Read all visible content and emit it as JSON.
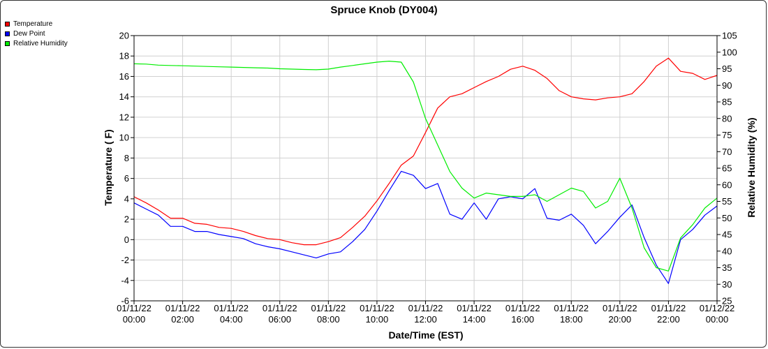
{
  "chart_data": {
    "type": "line",
    "title": "Spruce Knob (DY004)",
    "xlabel": "Date/Time (EST)",
    "ylabel": "Temperature ( F)",
    "y2label": "Relative Humidity (%)",
    "ylim": [
      -6,
      20
    ],
    "y2lim": [
      25,
      105
    ],
    "grid": true,
    "legend_position": "top-left",
    "x_tick_labels": [
      [
        "01/11/22",
        "00:00"
      ],
      [
        "01/11/22",
        "02:00"
      ],
      [
        "01/11/22",
        "04:00"
      ],
      [
        "01/11/22",
        "06:00"
      ],
      [
        "01/11/22",
        "08:00"
      ],
      [
        "01/11/22",
        "10:00"
      ],
      [
        "01/11/22",
        "12:00"
      ],
      [
        "01/11/22",
        "14:00"
      ],
      [
        "01/11/22",
        "16:00"
      ],
      [
        "01/11/22",
        "18:00"
      ],
      [
        "01/11/22",
        "20:00"
      ],
      [
        "01/11/22",
        "22:00"
      ],
      [
        "01/12/22",
        "00:00"
      ]
    ],
    "y_ticks": [
      -6,
      -4,
      -2,
      0,
      2,
      4,
      6,
      8,
      10,
      12,
      14,
      16,
      18,
      20
    ],
    "y2_ticks": [
      25,
      30,
      35,
      40,
      45,
      50,
      55,
      60,
      65,
      70,
      75,
      80,
      85,
      90,
      95,
      100,
      105
    ],
    "x_hours": [
      0,
      0.5,
      1,
      1.5,
      2,
      2.5,
      3,
      3.5,
      4,
      4.5,
      5,
      5.5,
      6,
      6.5,
      7,
      7.5,
      8,
      8.5,
      9,
      9.5,
      10,
      10.5,
      11,
      11.5,
      12,
      12.5,
      13,
      13.5,
      14,
      14.5,
      15,
      15.5,
      16,
      16.5,
      17,
      17.5,
      18,
      18.5,
      19,
      19.5,
      20,
      20.5,
      21,
      21.5,
      22,
      22.5,
      23,
      23.5,
      24
    ],
    "series": [
      {
        "name": "Temperature",
        "color": "#ff0000",
        "axis": "left",
        "values": [
          4.2,
          3.6,
          2.9,
          2.1,
          2.1,
          1.6,
          1.5,
          1.2,
          1.1,
          0.8,
          0.4,
          0.1,
          0.0,
          -0.3,
          -0.5,
          -0.5,
          -0.2,
          0.2,
          1.2,
          2.3,
          3.8,
          5.5,
          7.3,
          8.2,
          10.5,
          12.9,
          14.0,
          14.3,
          14.9,
          15.5,
          16.0,
          16.7,
          17.0,
          16.6,
          15.8,
          14.6,
          14.0,
          13.8,
          13.7,
          13.9,
          14.0,
          14.3,
          15.5,
          17.0,
          17.8,
          16.5,
          16.3,
          15.7,
          16.1
        ]
      },
      {
        "name": "Dew Point",
        "color": "#0000ff",
        "axis": "left",
        "values": [
          3.6,
          3.0,
          2.4,
          1.3,
          1.3,
          0.8,
          0.8,
          0.5,
          0.3,
          0.1,
          -0.4,
          -0.7,
          -0.9,
          -1.2,
          -1.5,
          -1.8,
          -1.4,
          -1.2,
          -0.2,
          1.0,
          2.8,
          4.8,
          6.7,
          6.3,
          5.0,
          5.5,
          2.5,
          2.0,
          3.6,
          2.0,
          4.0,
          4.2,
          4.0,
          5.0,
          2.1,
          1.9,
          2.5,
          1.4,
          -0.4,
          0.8,
          2.2,
          3.4,
          0.2,
          -2.5,
          -4.3,
          0.0,
          1.0,
          2.4,
          3.3
        ]
      },
      {
        "name": "Relative Humidity",
        "color": "#00ee00",
        "axis": "right",
        "values": [
          96.5,
          96.4,
          96.1,
          96.0,
          95.9,
          95.8,
          95.7,
          95.6,
          95.5,
          95.4,
          95.3,
          95.2,
          95.0,
          94.9,
          94.8,
          94.7,
          94.9,
          95.5,
          96.0,
          96.5,
          97.0,
          97.3,
          97.0,
          91.0,
          80.0,
          72.0,
          64.0,
          59.0,
          56.0,
          57.5,
          57.0,
          56.5,
          56.5,
          57.0,
          55.0,
          57.0,
          59.0,
          58.0,
          53.0,
          55.0,
          62.0,
          53.0,
          41.0,
          35.0,
          34.0,
          44.0,
          48.0,
          53.0,
          56.0
        ]
      }
    ]
  }
}
